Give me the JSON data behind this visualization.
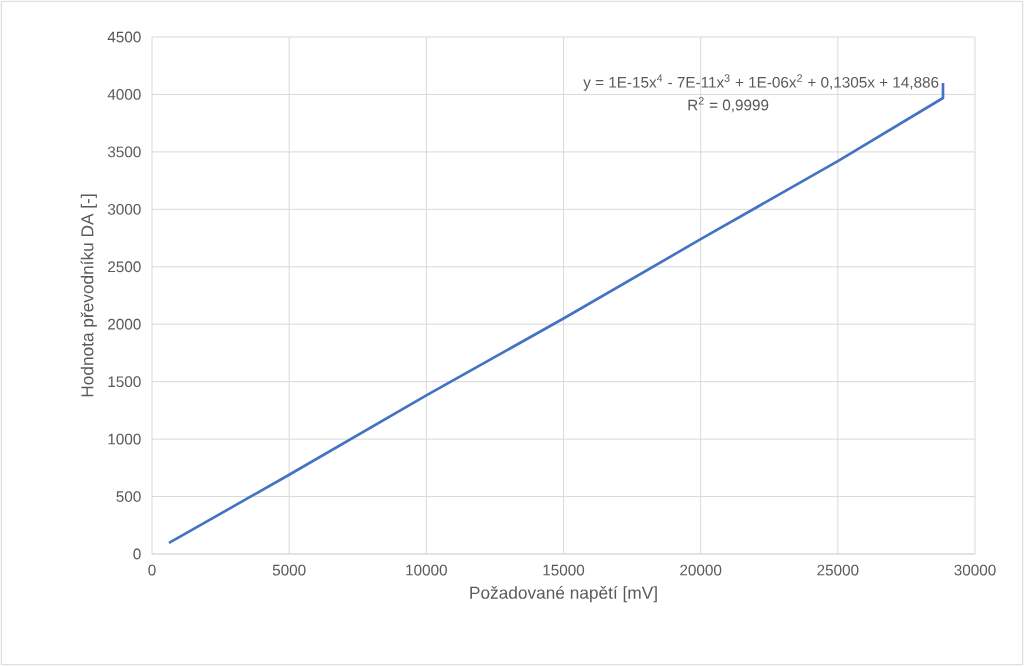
{
  "chart_data": {
    "type": "line",
    "xlabel": "Požadované napětí [mV]",
    "ylabel": "Hodnota převodníku DA [-]",
    "x": [
      620,
      5000,
      10000,
      15000,
      20000,
      25000,
      28833,
      28833
    ],
    "series": [
      {
        "color": "#4472c4",
        "values": [
          96,
          690,
          1380,
          2050,
          2740,
          3420,
          3969,
          4100
        ]
      }
    ],
    "xlim": [
      0,
      30000
    ],
    "xticks": [
      0,
      5000,
      10000,
      15000,
      20000,
      25000,
      30000
    ],
    "ylim": [
      0,
      4500
    ],
    "yticks": [
      0,
      500,
      1000,
      1500,
      2000,
      2500,
      3000,
      3500,
      4000,
      4500
    ],
    "grid": true,
    "marker": "none",
    "line_style": "solid",
    "annotations": [
      "y = 1E-15x$^{4}$ - 7E-11x$^{3}$ + 1E-06x$^{2}$ + 0,1305x + 14,886",
      "R$^{2}$ = 0,9999"
    ]
  }
}
